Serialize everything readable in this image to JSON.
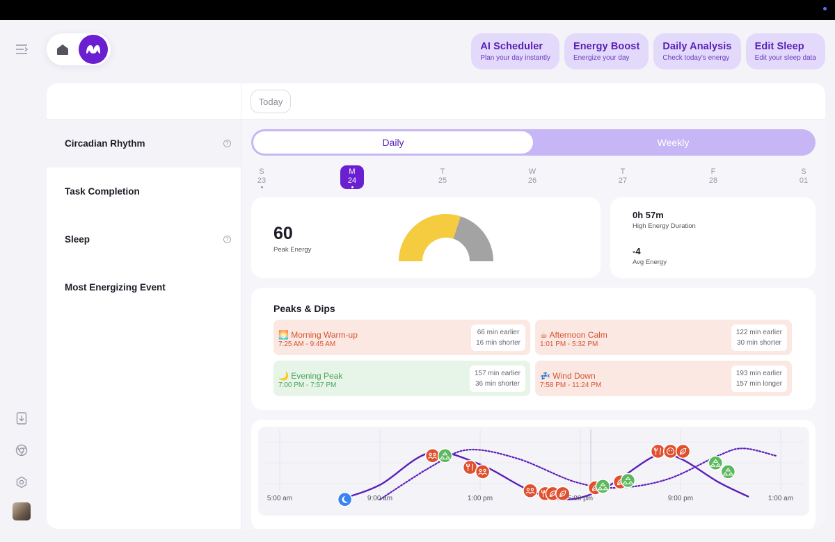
{
  "actions": [
    {
      "title": "AI Scheduler",
      "subtitle": "Plan your day instantly"
    },
    {
      "title": "Energy Boost",
      "subtitle": "Energize your day"
    },
    {
      "title": "Daily Analysis",
      "subtitle": "Check today's energy"
    },
    {
      "title": "Edit Sleep",
      "subtitle": "Edit your sleep data"
    }
  ],
  "sidebar": {
    "items": [
      {
        "label": "Circadian Rhythm",
        "help": "?"
      },
      {
        "label": "Task Completion"
      },
      {
        "label": "Sleep",
        "help": "?"
      },
      {
        "label": "Most Energizing Event"
      }
    ]
  },
  "header": {
    "today_label": "Today"
  },
  "tabs": {
    "daily": "Daily",
    "weekly": "Weekly"
  },
  "days": [
    {
      "letter": "S",
      "num": "23"
    },
    {
      "letter": "M",
      "num": "24",
      "selected": true
    },
    {
      "letter": "T",
      "num": "25"
    },
    {
      "letter": "W",
      "num": "26"
    },
    {
      "letter": "T",
      "num": "27"
    },
    {
      "letter": "F",
      "num": "28"
    },
    {
      "letter": "S",
      "num": "01"
    }
  ],
  "energy": {
    "peak_value": "60",
    "peak_label": "Peak Energy",
    "gauge_fraction": 0.6,
    "gauge_colors": {
      "filled": "#f5cb3f",
      "rest": "#a3a3a3"
    },
    "high_duration": "0h 57m",
    "high_duration_label": "High Energy Duration",
    "avg_value": "-4",
    "avg_label": "Avg Energy"
  },
  "peaks_dips": {
    "title": "Peaks & Dips",
    "items": [
      {
        "icon": "🌅",
        "name": "Morning Warm-up",
        "time": "7:25 AM - 9:45 AM",
        "line1": "66 min earlier",
        "line2": "16 min shorter",
        "tone": "red"
      },
      {
        "icon": "☕",
        "name": "Afternoon Calm",
        "time": "1:01 PM - 5:32 PM",
        "line1": "122 min earlier",
        "line2": "30 min shorter",
        "tone": "red"
      },
      {
        "icon": "🌙",
        "name": "Evening Peak",
        "time": "7:00 PM - 7:57 PM",
        "line1": "157 min earlier",
        "line2": "36 min shorter",
        "tone": "green"
      },
      {
        "icon": "💤",
        "name": "Wind Down",
        "time": "7:58 PM - 11:24 PM",
        "line1": "193 min earlier",
        "line2": "157 min longer",
        "tone": "red"
      }
    ]
  },
  "chart": {
    "x_labels": [
      "5:00 am",
      "9:00 am",
      "1:00 pm",
      "5:00 pm",
      "9:00 pm",
      "1:00 am"
    ],
    "colors": {
      "line": "#5a1fb8",
      "green": "#5cb85c",
      "red": "#e0502e",
      "blue": "#3b82f6"
    }
  },
  "chart_data": {
    "type": "line",
    "x_ticks": [
      "5:00 am",
      "9:00 am",
      "1:00 pm",
      "5:00 pm",
      "9:00 pm",
      "1:00 am"
    ],
    "x_range_hours": [
      5,
      25
    ],
    "series": [
      {
        "style": "solid",
        "points": [
          [
            7.4,
            -0.9
          ],
          [
            9,
            -0.4
          ],
          [
            11,
            0.7
          ],
          [
            13,
            0.3
          ],
          [
            15,
            -0.6
          ],
          [
            16.5,
            -0.9
          ],
          [
            18,
            -0.5
          ],
          [
            20,
            0.6
          ],
          [
            21,
            0.5
          ],
          [
            22.5,
            -0.3
          ],
          [
            23.7,
            -0.8
          ]
        ]
      },
      {
        "style": "dotted",
        "points": [
          [
            9,
            -0.9
          ],
          [
            11,
            0.2
          ],
          [
            12.5,
            0.8
          ],
          [
            14.5,
            0.5
          ],
          [
            16.8,
            -0.3
          ],
          [
            18.5,
            -0.5
          ],
          [
            20.5,
            -0.2
          ],
          [
            22.5,
            0.6
          ],
          [
            23.5,
            0.85
          ],
          [
            24.8,
            0.6
          ]
        ]
      }
    ],
    "events": [
      {
        "h": 7.6,
        "v": -0.9,
        "kind": "sleep",
        "color": "blue"
      },
      {
        "h": 11.1,
        "v": 0.6,
        "kind": "social",
        "color": "red"
      },
      {
        "h": 11.6,
        "v": 0.6,
        "kind": "exercise",
        "color": "green"
      },
      {
        "h": 12.6,
        "v": 0.2,
        "kind": "meal",
        "color": "red"
      },
      {
        "h": 13.1,
        "v": 0.05,
        "kind": "social",
        "color": "red"
      },
      {
        "h": 15.0,
        "v": -0.6,
        "kind": "social",
        "color": "red"
      },
      {
        "h": 15.6,
        "v": -0.7,
        "kind": "meal",
        "color": "red"
      },
      {
        "h": 15.9,
        "v": -0.7,
        "kind": "nature",
        "color": "red"
      },
      {
        "h": 16.3,
        "v": -0.7,
        "kind": "nature",
        "color": "red"
      },
      {
        "h": 17.6,
        "v": -0.5,
        "kind": "nature",
        "color": "red"
      },
      {
        "h": 17.9,
        "v": -0.45,
        "kind": "exercise",
        "color": "green"
      },
      {
        "h": 18.6,
        "v": -0.3,
        "kind": "nature",
        "color": "red"
      },
      {
        "h": 18.9,
        "v": -0.25,
        "kind": "exercise",
        "color": "green"
      },
      {
        "h": 20.1,
        "v": 0.75,
        "kind": "meal",
        "color": "red"
      },
      {
        "h": 20.6,
        "v": 0.75,
        "kind": "emoji",
        "color": "red"
      },
      {
        "h": 21.1,
        "v": 0.75,
        "kind": "nature",
        "color": "red"
      },
      {
        "h": 22.4,
        "v": 0.35,
        "kind": "exercise",
        "color": "green"
      },
      {
        "h": 22.9,
        "v": 0.05,
        "kind": "exercise",
        "color": "green"
      }
    ]
  }
}
